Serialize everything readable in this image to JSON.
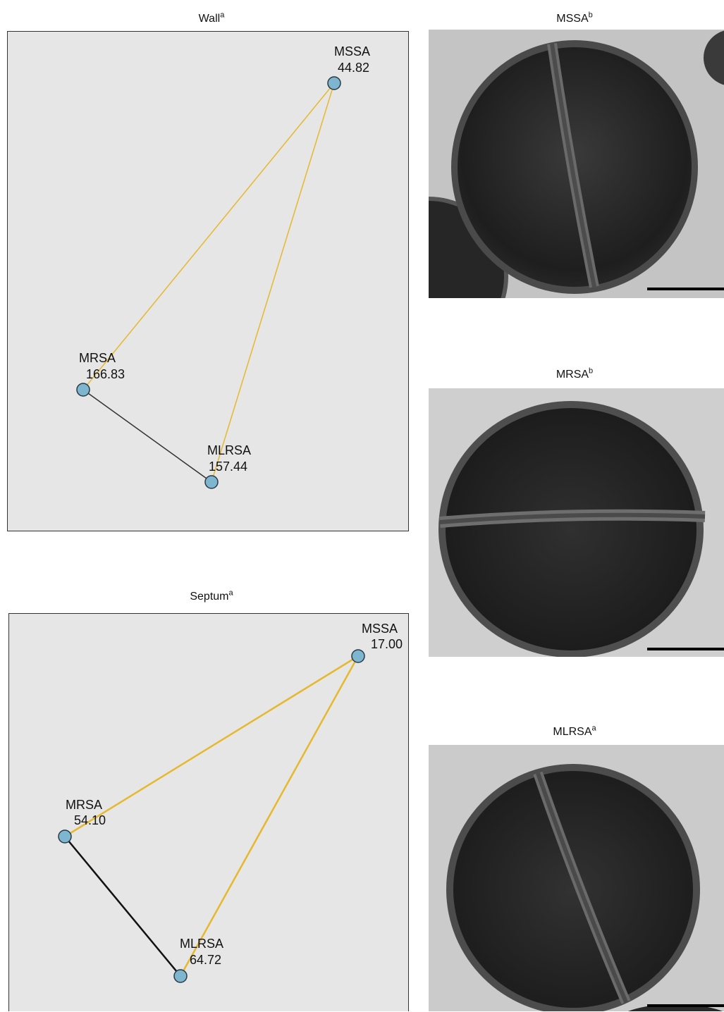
{
  "wall": {
    "title": "Wall",
    "title_sup": "a",
    "nodes": [
      {
        "name": "MSSA",
        "value": "44.82"
      },
      {
        "name": "MRSA",
        "value": "166.83"
      },
      {
        "name": "MLRSA",
        "value": "157.44"
      }
    ],
    "edges": [
      {
        "from": "MSSA",
        "to": "MRSA",
        "color": "#e6b82e"
      },
      {
        "from": "MSSA",
        "to": "MLRSA",
        "color": "#e6b82e"
      },
      {
        "from": "MRSA",
        "to": "MLRSA",
        "color": "#333333"
      }
    ]
  },
  "septum": {
    "title": "Septum",
    "title_sup": "a",
    "nodes": [
      {
        "name": "MSSA",
        "value": "17.00"
      },
      {
        "name": "MRSA",
        "value": "54.10"
      },
      {
        "name": "MLRSA",
        "value": "64.72"
      }
    ],
    "edges": [
      {
        "from": "MSSA",
        "to": "MRSA",
        "color": "#e6b82e"
      },
      {
        "from": "MSSA",
        "to": "MLRSA",
        "color": "#e6b82e"
      },
      {
        "from": "MRSA",
        "to": "MLRSA",
        "color": "#111111"
      }
    ]
  },
  "micrographs": [
    {
      "title": "MSSA",
      "title_sup": "b"
    },
    {
      "title": "MRSA",
      "title_sup": "b"
    },
    {
      "title": "MLRSA",
      "title_sup": "a"
    }
  ],
  "colors": {
    "node_fill": "#7fb6cf",
    "node_stroke": "#2a3a44",
    "panel_bg": "#e6e6e6"
  }
}
